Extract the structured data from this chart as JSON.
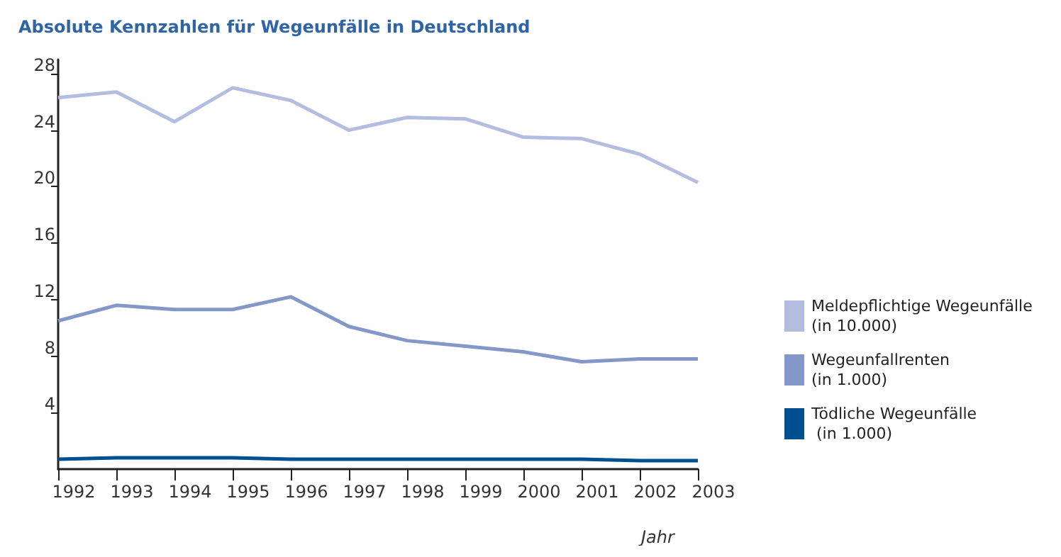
{
  "chart_data": {
    "type": "line",
    "title": "Absolute Kennzahlen für Wegeunfälle in Deutschland",
    "xlabel": "Jahr",
    "categories": [
      "1992",
      "1993",
      "1994",
      "1995",
      "1996",
      "1997",
      "1998",
      "1999",
      "2000",
      "2001",
      "2002",
      "2003"
    ],
    "series": [
      {
        "name": "Meldepflichtige Wegeunfälle\n(in 10.000)",
        "color": "#b3bde0",
        "values": [
          26.3,
          26.7,
          24.6,
          27.0,
          26.1,
          24.0,
          24.9,
          24.8,
          23.5,
          23.4,
          22.3,
          20.3
        ]
      },
      {
        "name": "Wegeunfallrenten\n(in 1.000)",
        "color": "#8397c8",
        "values": [
          10.5,
          11.6,
          11.3,
          11.3,
          12.2,
          10.1,
          9.1,
          8.7,
          8.3,
          7.6,
          7.8,
          7.8
        ]
      },
      {
        "name": "Tödliche Wegeunfälle\n (in 1.000)",
        "color": "#00508f",
        "values": [
          0.7,
          0.8,
          0.8,
          0.8,
          0.7,
          0.7,
          0.7,
          0.7,
          0.7,
          0.7,
          0.6,
          0.6
        ]
      }
    ],
    "ylim": [
      0,
      29
    ],
    "yticks": [
      4,
      8,
      12,
      16,
      20,
      24,
      28
    ],
    "grid": false,
    "legend": "right",
    "marker": "none",
    "line_style": "solid"
  }
}
